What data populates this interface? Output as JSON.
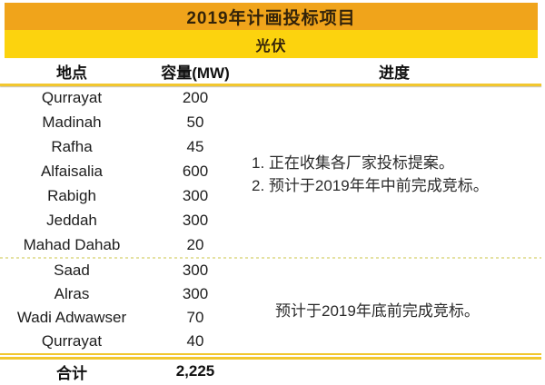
{
  "chart_data": {
    "type": "table",
    "title": "2019年计画投标项目",
    "subtitle": "光伏",
    "columns": {
      "location": "地点",
      "capacity": "容量(MW)",
      "progress": "进度"
    },
    "groups": [
      {
        "rows": [
          {
            "location": "Qurrayat",
            "capacity_mw": 200
          },
          {
            "location": "Madinah",
            "capacity_mw": 50
          },
          {
            "location": "Rafha",
            "capacity_mw": 45
          },
          {
            "location": "Alfaisalia",
            "capacity_mw": 600
          },
          {
            "location": "Rabigh",
            "capacity_mw": 300
          },
          {
            "location": "Jeddah",
            "capacity_mw": 300
          },
          {
            "location": "Mahad Dahab",
            "capacity_mw": 20
          }
        ],
        "progress_lines": [
          "1. 正在收集各厂家投标提案。",
          "2. 预计于2019年年中前完成竞标。"
        ]
      },
      {
        "rows": [
          {
            "location": "Saad",
            "capacity_mw": 300
          },
          {
            "location": "Alras",
            "capacity_mw": 300
          },
          {
            "location": "Wadi Adwawser",
            "capacity_mw": 70
          },
          {
            "location": "Qurrayat",
            "capacity_mw": 40
          }
        ],
        "progress_lines": [
          "预计于2019年底前完成竞标。"
        ]
      }
    ],
    "total": {
      "label": "合计",
      "value_display": "2,225",
      "value_mw": 2225
    }
  },
  "colors": {
    "title_band": "#F0A41B",
    "subtitle_band": "#FCD30E",
    "rule_gold": "#F2C72E",
    "rule_dashed": "#E5E2A3",
    "title_text": "#33230A",
    "body_text": "#1D1D1D"
  }
}
